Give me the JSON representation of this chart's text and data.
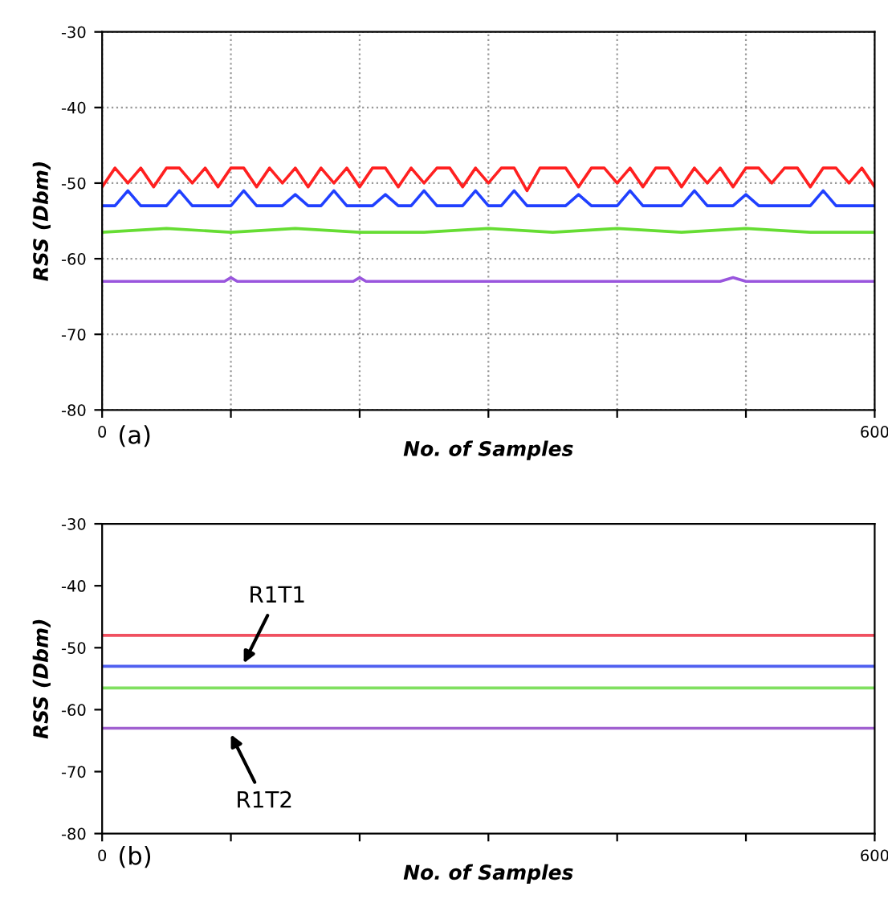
{
  "chart_data": [
    {
      "type": "line",
      "xlabel": "No. of Samples",
      "ylabel": "RSS (Dbm)",
      "xlim": [
        0,
        600
      ],
      "ylim": [
        -80,
        -30
      ],
      "xticks": [
        0,
        {
          "value": 100,
          "label": null
        },
        {
          "value": 200,
          "label": null
        },
        {
          "value": 300,
          "label": null
        },
        {
          "value": 400,
          "label": null
        },
        {
          "value": 500,
          "label": null
        },
        600
      ],
      "yticks": [
        -80,
        -70,
        -60,
        -50,
        -40,
        -30
      ],
      "grid": true,
      "line_style": "solid",
      "annotations": [
        "(a)"
      ],
      "series": [
        {
          "color": "#ff2020",
          "x": [
            0,
            10,
            20,
            30,
            40,
            50,
            60,
            70,
            80,
            90,
            100,
            110,
            120,
            130,
            140,
            150,
            160,
            170,
            180,
            190,
            200,
            210,
            220,
            230,
            240,
            250,
            260,
            270,
            280,
            290,
            300,
            310,
            320,
            330,
            340,
            350,
            360,
            370,
            380,
            390,
            400,
            410,
            420,
            430,
            440,
            450,
            460,
            470,
            480,
            490,
            500,
            510,
            520,
            530,
            540,
            550,
            560,
            570,
            580,
            590,
            600
          ],
          "values": [
            -50.5,
            -48,
            -50,
            -48,
            -50.5,
            -48,
            -48,
            -50,
            -48,
            -50.5,
            -48,
            -48,
            -50.5,
            -48,
            -50,
            -48,
            -50.5,
            -48,
            -50,
            -48,
            -50.5,
            -48,
            -48,
            -50.5,
            -48,
            -50,
            -48,
            -48,
            -50.5,
            -48,
            -50,
            -48,
            -48,
            -51,
            -48,
            -48,
            -48,
            -50.5,
            -48,
            -48,
            -50,
            -48,
            -50.5,
            -48,
            -48,
            -50.5,
            -48,
            -50,
            -48,
            -50.5,
            -48,
            -48,
            -50,
            -48,
            -48,
            -50.5,
            -48,
            -48,
            -50,
            -48,
            -50.5
          ]
        },
        {
          "color": "#2040ff",
          "x": [
            0,
            10,
            20,
            30,
            40,
            50,
            60,
            70,
            80,
            90,
            100,
            110,
            120,
            130,
            140,
            150,
            160,
            170,
            180,
            190,
            200,
            210,
            220,
            230,
            240,
            250,
            260,
            270,
            280,
            290,
            300,
            310,
            320,
            330,
            340,
            350,
            360,
            370,
            380,
            390,
            400,
            410,
            420,
            430,
            440,
            450,
            460,
            470,
            480,
            490,
            500,
            510,
            520,
            530,
            540,
            550,
            560,
            570,
            580,
            590,
            600
          ],
          "values": [
            -53,
            -53,
            -51,
            -53,
            -53,
            -53,
            -51,
            -53,
            -53,
            -53,
            -53,
            -51,
            -53,
            -53,
            -53,
            -51.5,
            -53,
            -53,
            -51,
            -53,
            -53,
            -53,
            -51.5,
            -53,
            -53,
            -51,
            -53,
            -53,
            -53,
            -51,
            -53,
            -53,
            -51,
            -53,
            -53,
            -53,
            -53,
            -51.5,
            -53,
            -53,
            -53,
            -51,
            -53,
            -53,
            -53,
            -53,
            -51,
            -53,
            -53,
            -53,
            -51.5,
            -53,
            -53,
            -53,
            -53,
            -53,
            -51,
            -53,
            -53,
            -53,
            -53
          ]
        },
        {
          "color": "#66dd33",
          "x": [
            0,
            50,
            100,
            150,
            200,
            250,
            300,
            350,
            400,
            450,
            500,
            550,
            600
          ],
          "values": [
            -56.5,
            -56,
            -56.5,
            -56,
            -56.5,
            -56.5,
            -56,
            -56.5,
            -56,
            -56.5,
            -56,
            -56.5,
            -56.5
          ]
        },
        {
          "color": "#9955dd",
          "x": [
            0,
            95,
            100,
            105,
            195,
            200,
            205,
            480,
            490,
            500,
            600
          ],
          "values": [
            -63,
            -63,
            -62.5,
            -63,
            -63,
            -62.5,
            -63,
            -63,
            -62.5,
            -63,
            -63
          ]
        }
      ]
    },
    {
      "type": "line",
      "xlabel": "No. of Samples",
      "ylabel": "RSS (Dbm)",
      "xlim": [
        0,
        600
      ],
      "ylim": [
        -80,
        -30
      ],
      "xticks": [
        0,
        {
          "value": 100,
          "label": null
        },
        {
          "value": 200,
          "label": null
        },
        {
          "value": 300,
          "label": null
        },
        {
          "value": 400,
          "label": null
        },
        {
          "value": 500,
          "label": null
        },
        600
      ],
      "yticks": [
        -80,
        -70,
        -60,
        -50,
        -40,
        -30
      ],
      "line_style": "solid",
      "annotations": [
        "(b)",
        {
          "text": "R1T1",
          "x": 110,
          "y": -52.5
        },
        {
          "text": "R1T2",
          "x": 100,
          "y": -64
        }
      ],
      "series": [
        {
          "color": "#f05060",
          "x": [
            0,
            600
          ],
          "values": [
            -48,
            -48
          ]
        },
        {
          "color": "#5060f0",
          "x": [
            0,
            600
          ],
          "values": [
            -53,
            -53
          ]
        },
        {
          "color": "#80e060",
          "x": [
            0,
            600
          ],
          "values": [
            -56.5,
            -56.5
          ]
        },
        {
          "color": "#a060d0",
          "x": [
            0,
            600
          ],
          "values": [
            -63,
            -63
          ]
        }
      ]
    }
  ]
}
